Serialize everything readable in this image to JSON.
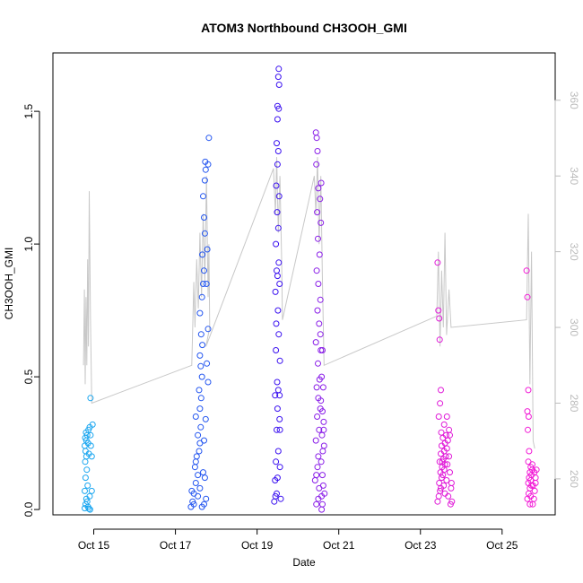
{
  "chart_data": {
    "type": "scatter",
    "title": "ATOM3 Northbound CH3OOH_GMI",
    "xlabel": "Date",
    "ylabel": "CH3OOH_GMI",
    "x_ticks": [
      {
        "label": "Oct 15",
        "day": 15
      },
      {
        "label": "Oct 17",
        "day": 17
      },
      {
        "label": "Oct 19",
        "day": 19
      },
      {
        "label": "Oct 21",
        "day": 21
      },
      {
        "label": "Oct 23",
        "day": 23
      },
      {
        "label": "Oct 25",
        "day": 25
      }
    ],
    "xlim_day": [
      14.0,
      26.3
    ],
    "y_ticks": [
      0.0,
      0.5,
      1.0,
      1.5
    ],
    "y_tick_labels": [
      "0.0",
      "0.5",
      "1.0",
      "1.5"
    ],
    "ylim": [
      -0.02,
      1.72
    ],
    "y2_ticks": [
      260,
      280,
      300,
      320,
      340,
      360
    ],
    "y2lim": [
      250.5,
      372.5
    ],
    "colors": {
      "axis": "#000000",
      "secondary_line": "#c8c8c8",
      "secondary_axis": "#bbbbbb",
      "flight1": "#1aa6f0",
      "flight2": "#2456f0",
      "flight3": "#3a10f0",
      "flight4": "#8a1ee8",
      "flight5": "#e01ad8",
      "flight6": "#f21ad6"
    },
    "series": [
      {
        "color": "#1aa6f0",
        "points": [
          [
            14.78,
            0.005
          ],
          [
            14.8,
            0.02
          ],
          [
            14.82,
            0.04
          ],
          [
            14.78,
            0.07
          ],
          [
            14.85,
            0.09
          ],
          [
            14.8,
            0.12
          ],
          [
            14.83,
            0.15
          ],
          [
            14.79,
            0.18
          ],
          [
            14.82,
            0.2
          ],
          [
            14.8,
            0.22
          ],
          [
            14.78,
            0.24
          ],
          [
            14.82,
            0.26
          ],
          [
            14.79,
            0.27
          ],
          [
            14.84,
            0.28
          ],
          [
            14.81,
            0.29
          ],
          [
            14.87,
            0.3
          ],
          [
            14.9,
            0.31
          ],
          [
            14.86,
            0.25
          ],
          [
            14.92,
            0.28
          ],
          [
            14.88,
            0.21
          ],
          [
            14.95,
            0.2
          ],
          [
            14.92,
            0.42
          ],
          [
            14.9,
            0.05
          ],
          [
            14.95,
            0.07
          ],
          [
            14.88,
            0.003
          ],
          [
            14.91,
            0.0
          ],
          [
            14.86,
            0.01
          ],
          [
            14.84,
            0.03
          ],
          [
            14.97,
            0.32
          ],
          [
            14.93,
            0.24
          ]
        ]
      },
      {
        "color": "#2456f0",
        "points": [
          [
            17.38,
            0.01
          ],
          [
            17.42,
            0.03
          ],
          [
            17.45,
            0.06
          ],
          [
            17.5,
            0.1
          ],
          [
            17.55,
            0.13
          ],
          [
            17.48,
            0.16
          ],
          [
            17.52,
            0.2
          ],
          [
            17.58,
            0.22
          ],
          [
            17.6,
            0.25
          ],
          [
            17.55,
            0.28
          ],
          [
            17.62,
            0.31
          ],
          [
            17.5,
            0.35
          ],
          [
            17.6,
            0.38
          ],
          [
            17.63,
            0.42
          ],
          [
            17.58,
            0.45
          ],
          [
            17.65,
            0.5
          ],
          [
            17.62,
            0.54
          ],
          [
            17.6,
            0.58
          ],
          [
            17.66,
            0.62
          ],
          [
            17.63,
            0.66
          ],
          [
            17.6,
            0.74
          ],
          [
            17.65,
            0.8
          ],
          [
            17.68,
            0.85
          ],
          [
            17.7,
            0.9
          ],
          [
            17.66,
            0.96
          ],
          [
            17.72,
            1.04
          ],
          [
            17.7,
            1.1
          ],
          [
            17.68,
            1.18
          ],
          [
            17.72,
            1.24
          ],
          [
            17.74,
            1.28
          ],
          [
            17.73,
            1.31
          ],
          [
            17.8,
            1.3
          ],
          [
            17.82,
            1.4
          ],
          [
            17.78,
            0.98
          ],
          [
            17.76,
            0.85
          ],
          [
            17.8,
            0.68
          ],
          [
            17.72,
            0.12
          ],
          [
            17.75,
            0.04
          ],
          [
            17.7,
            0.02
          ],
          [
            17.8,
            0.48
          ],
          [
            17.45,
            0.02
          ],
          [
            17.4,
            0.07
          ],
          [
            17.55,
            0.05
          ],
          [
            17.65,
            0.01
          ],
          [
            17.5,
            0.18
          ],
          [
            17.7,
            0.26
          ],
          [
            17.74,
            0.34
          ],
          [
            17.77,
            0.55
          ],
          [
            17.6,
            0.08
          ],
          [
            17.68,
            0.14
          ]
        ]
      },
      {
        "color": "#3a10f0",
        "points": [
          [
            19.42,
            0.03
          ],
          [
            19.45,
            0.05
          ],
          [
            19.48,
            0.06
          ],
          [
            19.44,
            0.11
          ],
          [
            19.5,
            0.12
          ],
          [
            19.46,
            0.18
          ],
          [
            19.52,
            0.22
          ],
          [
            19.48,
            0.3
          ],
          [
            19.55,
            0.34
          ],
          [
            19.5,
            0.38
          ],
          [
            19.44,
            0.43
          ],
          [
            19.52,
            0.45
          ],
          [
            19.49,
            0.48
          ],
          [
            19.56,
            0.56
          ],
          [
            19.46,
            0.6
          ],
          [
            19.53,
            0.66
          ],
          [
            19.47,
            0.7
          ],
          [
            19.51,
            0.75
          ],
          [
            19.45,
            0.82
          ],
          [
            19.55,
            0.85
          ],
          [
            19.5,
            0.88
          ],
          [
            19.48,
            0.9
          ],
          [
            19.53,
            0.93
          ],
          [
            19.46,
            1.0
          ],
          [
            19.52,
            1.06
          ],
          [
            19.49,
            1.12
          ],
          [
            19.54,
            1.18
          ],
          [
            19.47,
            1.22
          ],
          [
            19.5,
            1.3
          ],
          [
            19.52,
            1.35
          ],
          [
            19.48,
            1.38
          ],
          [
            19.5,
            1.47
          ],
          [
            19.53,
            1.51
          ],
          [
            19.5,
            1.52
          ],
          [
            19.54,
            1.6
          ],
          [
            19.52,
            1.63
          ],
          [
            19.53,
            1.66
          ],
          [
            19.55,
            0.43
          ],
          [
            19.56,
            0.3
          ],
          [
            19.58,
            0.04
          ],
          [
            19.56,
            0.16
          ]
        ]
      },
      {
        "color": "#8a1ee8",
        "points": [
          [
            20.42,
            0.11
          ],
          [
            20.45,
            0.13
          ],
          [
            20.48,
            0.16
          ],
          [
            20.5,
            0.2
          ],
          [
            20.44,
            0.26
          ],
          [
            20.52,
            0.3
          ],
          [
            20.47,
            0.35
          ],
          [
            20.55,
            0.38
          ],
          [
            20.5,
            0.42
          ],
          [
            20.46,
            0.46
          ],
          [
            20.53,
            0.49
          ],
          [
            20.49,
            0.55
          ],
          [
            20.56,
            0.6
          ],
          [
            20.44,
            0.63
          ],
          [
            20.52,
            0.7
          ],
          [
            20.48,
            0.75
          ],
          [
            20.55,
            0.79
          ],
          [
            20.5,
            0.85
          ],
          [
            20.46,
            0.9
          ],
          [
            20.53,
            0.96
          ],
          [
            20.49,
            1.02
          ],
          [
            20.56,
            1.08
          ],
          [
            20.47,
            1.12
          ],
          [
            20.54,
            1.17
          ],
          [
            20.5,
            1.21
          ],
          [
            20.57,
            1.23
          ],
          [
            20.45,
            1.3
          ],
          [
            20.48,
            1.35
          ],
          [
            20.46,
            1.4
          ],
          [
            20.44,
            1.42
          ],
          [
            20.58,
            0.0
          ],
          [
            20.6,
            0.02
          ],
          [
            20.58,
            0.05
          ],
          [
            20.62,
            0.09
          ],
          [
            20.6,
            0.13
          ],
          [
            20.57,
            0.18
          ],
          [
            20.61,
            0.22
          ],
          [
            20.59,
            0.28
          ],
          [
            20.63,
            0.33
          ],
          [
            20.6,
            0.37
          ],
          [
            20.56,
            0.41
          ],
          [
            20.62,
            0.46
          ],
          [
            20.58,
            0.5
          ],
          [
            20.6,
            0.6
          ],
          [
            20.55,
            0.66
          ],
          [
            20.52,
            0.08
          ],
          [
            20.45,
            0.02
          ],
          [
            20.5,
            0.04
          ],
          [
            20.65,
            0.06
          ],
          [
            20.64,
            0.24
          ],
          [
            20.63,
            0.3
          ]
        ]
      },
      {
        "color": "#e01ad8",
        "points": [
          [
            23.42,
            0.03
          ],
          [
            23.45,
            0.05
          ],
          [
            23.48,
            0.07
          ],
          [
            23.5,
            0.08
          ],
          [
            23.46,
            0.1
          ],
          [
            23.52,
            0.12
          ],
          [
            23.55,
            0.13
          ],
          [
            23.49,
            0.14
          ],
          [
            23.58,
            0.15
          ],
          [
            23.53,
            0.16
          ],
          [
            23.6,
            0.17
          ],
          [
            23.47,
            0.18
          ],
          [
            23.56,
            0.19
          ],
          [
            23.62,
            0.2
          ],
          [
            23.5,
            0.21
          ],
          [
            23.58,
            0.22
          ],
          [
            23.65,
            0.23
          ],
          [
            23.52,
            0.24
          ],
          [
            23.6,
            0.25
          ],
          [
            23.67,
            0.26
          ],
          [
            23.55,
            0.27
          ],
          [
            23.63,
            0.28
          ],
          [
            23.7,
            0.3
          ],
          [
            23.58,
            0.32
          ],
          [
            23.45,
            0.35
          ],
          [
            23.48,
            0.4
          ],
          [
            23.5,
            0.45
          ],
          [
            23.47,
            0.64
          ],
          [
            23.44,
            0.75
          ],
          [
            23.46,
            0.72
          ],
          [
            23.42,
            0.93
          ],
          [
            23.65,
            0.35
          ],
          [
            23.7,
            0.2
          ],
          [
            23.72,
            0.14
          ],
          [
            23.75,
            0.08
          ],
          [
            23.68,
            0.05
          ],
          [
            23.74,
            0.02
          ],
          [
            23.77,
            0.03
          ],
          [
            23.64,
            0.11
          ],
          [
            23.6,
            0.06
          ],
          [
            23.57,
            0.09
          ],
          [
            23.53,
            0.18
          ],
          [
            23.51,
            0.29
          ],
          [
            23.66,
            0.17
          ],
          [
            23.72,
            0.28
          ],
          [
            23.76,
            0.1
          ]
        ]
      },
      {
        "color": "#f21ad6",
        "points": [
          [
            25.62,
            0.04
          ],
          [
            25.65,
            0.06
          ],
          [
            25.68,
            0.08
          ],
          [
            25.64,
            0.1
          ],
          [
            25.7,
            0.11
          ],
          [
            25.66,
            0.12
          ],
          [
            25.72,
            0.13
          ],
          [
            25.68,
            0.14
          ],
          [
            25.74,
            0.15
          ],
          [
            25.7,
            0.16
          ],
          [
            25.64,
            0.18
          ],
          [
            25.66,
            0.22
          ],
          [
            25.63,
            0.3
          ],
          [
            25.65,
            0.35
          ],
          [
            25.62,
            0.37
          ],
          [
            25.64,
            0.45
          ],
          [
            25.62,
            0.8
          ],
          [
            25.6,
            0.9
          ],
          [
            25.75,
            0.02
          ],
          [
            25.78,
            0.04
          ],
          [
            25.8,
            0.07
          ],
          [
            25.76,
            0.09
          ],
          [
            25.82,
            0.12
          ],
          [
            25.79,
            0.14
          ],
          [
            25.84,
            0.15
          ],
          [
            25.74,
            0.17
          ],
          [
            25.72,
            0.09
          ],
          [
            25.68,
            0.02
          ],
          [
            25.7,
            0.05
          ],
          [
            25.82,
            0.1
          ]
        ]
      }
    ],
    "secondary_line": {
      "color": "#c8c8c8",
      "points": [
        [
          14.75,
          290
        ],
        [
          14.77,
          310
        ],
        [
          14.79,
          285
        ],
        [
          14.81,
          308
        ],
        [
          14.83,
          290
        ],
        [
          14.85,
          318
        ],
        [
          14.87,
          295
        ],
        [
          14.89,
          336
        ],
        [
          14.92,
          302
        ],
        [
          14.95,
          280
        ],
        [
          17.4,
          290
        ],
        [
          17.45,
          312
        ],
        [
          17.48,
          300
        ],
        [
          17.52,
          318
        ],
        [
          17.56,
          305
        ],
        [
          17.6,
          325
        ],
        [
          17.64,
          308
        ],
        [
          17.68,
          330
        ],
        [
          17.72,
          312
        ],
        [
          17.76,
          340
        ],
        [
          17.8,
          308
        ],
        [
          17.82,
          322
        ],
        [
          17.84,
          300
        ],
        [
          17.75,
          295
        ],
        [
          19.4,
          342
        ],
        [
          19.45,
          330
        ],
        [
          19.48,
          345
        ],
        [
          19.52,
          325
        ],
        [
          19.56,
          340
        ],
        [
          19.6,
          318
        ],
        [
          19.62,
          302
        ],
        [
          20.4,
          340
        ],
        [
          20.44,
          330
        ],
        [
          20.48,
          345
        ],
        [
          20.52,
          322
        ],
        [
          20.56,
          340
        ],
        [
          20.6,
          312
        ],
        [
          20.64,
          290
        ],
        [
          23.4,
          303
        ],
        [
          23.44,
          320
        ],
        [
          23.48,
          295
        ],
        [
          23.52,
          315
        ],
        [
          23.56,
          300
        ],
        [
          23.6,
          325
        ],
        [
          23.64,
          298
        ],
        [
          23.7,
          310
        ],
        [
          23.75,
          300
        ],
        [
          25.6,
          302
        ],
        [
          25.64,
          330
        ],
        [
          25.68,
          285
        ],
        [
          25.72,
          320
        ],
        [
          25.76,
          270
        ],
        [
          25.8,
          268
        ]
      ]
    }
  }
}
